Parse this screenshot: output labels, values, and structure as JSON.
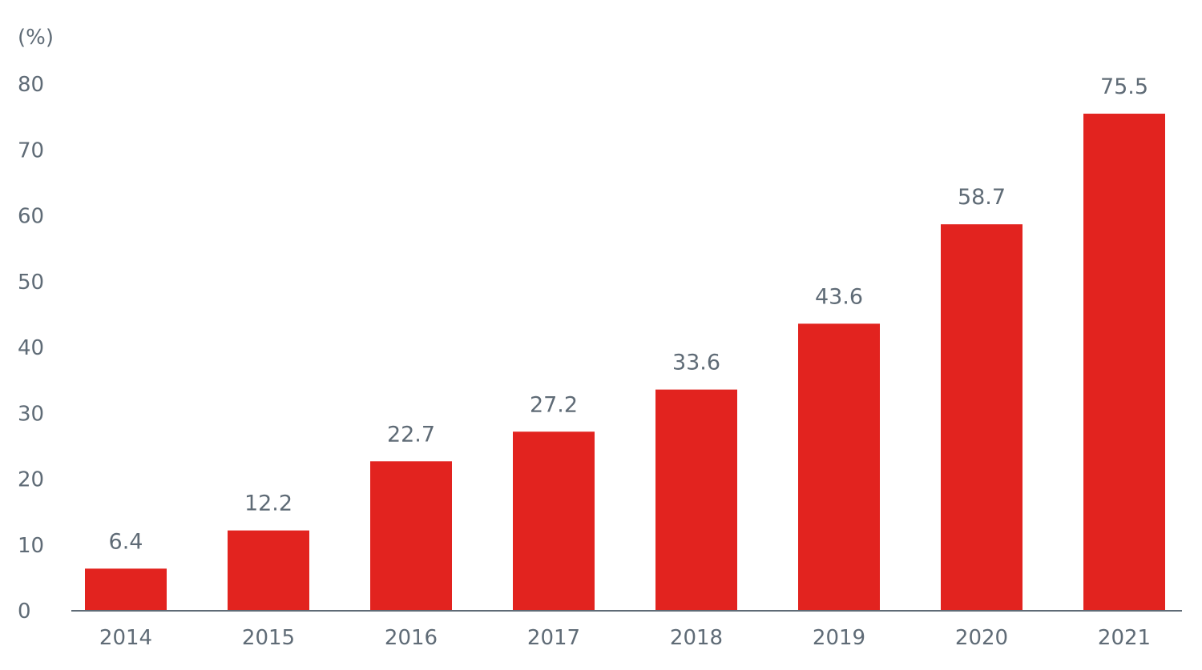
{
  "chart_data": {
    "type": "bar",
    "unit_label": "(%)",
    "categories": [
      "2014",
      "2015",
      "2016",
      "2017",
      "2018",
      "2019",
      "2020",
      "2021"
    ],
    "values": [
      6.4,
      12.2,
      22.7,
      27.2,
      33.6,
      43.6,
      58.7,
      75.5
    ],
    "data_labels": [
      "6.4",
      "12.2",
      "22.7",
      "27.2",
      "33.6",
      "43.6",
      "58.7",
      "75.5"
    ],
    "yticks": [
      "0",
      "10",
      "20",
      "30",
      "40",
      "50",
      "60",
      "70",
      "80"
    ],
    "ylim": [
      0,
      80
    ],
    "grid": false,
    "legend": "none",
    "bar_color": "#e2231f",
    "text_color": "#5f6b76",
    "axis_color": "#5f6b76"
  }
}
